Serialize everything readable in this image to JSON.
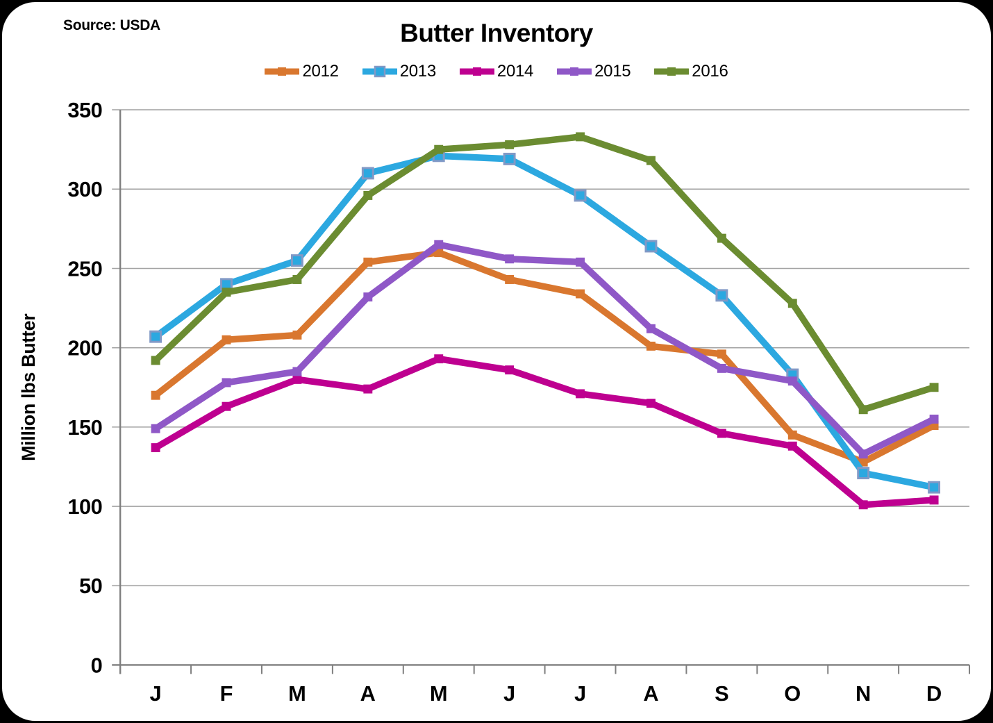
{
  "source": "Source: USDA",
  "title": "Butter Inventory",
  "chart_data": {
    "type": "line",
    "title": "Butter Inventory",
    "xlabel": "",
    "ylabel": "Million lbs Butter",
    "categories": [
      "J",
      "F",
      "M",
      "A",
      "M",
      "J",
      "J",
      "A",
      "S",
      "O",
      "N",
      "D"
    ],
    "y_ticks": [
      0,
      50,
      100,
      150,
      200,
      250,
      300,
      350
    ],
    "ylim": [
      0,
      350
    ],
    "grid": true,
    "legend_position": "top",
    "series": [
      {
        "name": "2012",
        "color": "#D9772F",
        "marker": "square",
        "values": [
          170,
          205,
          208,
          254,
          260,
          243,
          234,
          201,
          196,
          145,
          128,
          151
        ]
      },
      {
        "name": "2013",
        "color": "#2CA8E0",
        "marker": "square",
        "marker_border": "#8199C6",
        "values": [
          207,
          240,
          255,
          310,
          321,
          319,
          296,
          264,
          233,
          183,
          121,
          112
        ]
      },
      {
        "name": "2014",
        "color": "#BE0090",
        "marker": "square",
        "values": [
          137,
          163,
          180,
          174,
          193,
          186,
          171,
          165,
          146,
          138,
          101,
          104
        ]
      },
      {
        "name": "2015",
        "color": "#8F58C7",
        "marker": "square",
        "values": [
          149,
          178,
          185,
          232,
          265,
          256,
          254,
          212,
          187,
          179,
          133,
          155
        ]
      },
      {
        "name": "2016",
        "color": "#6B8C31",
        "marker": "square",
        "values": [
          192,
          235,
          243,
          296,
          325,
          328,
          333,
          318,
          269,
          228,
          161,
          175
        ]
      }
    ]
  }
}
